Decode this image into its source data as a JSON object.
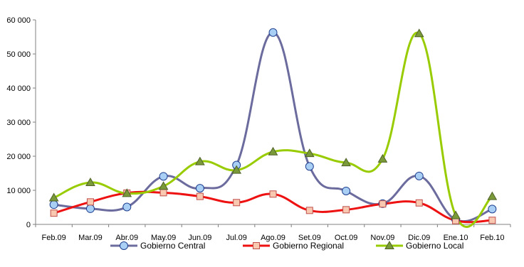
{
  "chart_data": {
    "type": "line",
    "categories": [
      "Feb.09",
      "Mar.09",
      "Abr.09",
      "May.09",
      "Jun.09",
      "Jul.09",
      "Ago.09",
      "Set.09",
      "Oct.09",
      "Nov.09",
      "Dic.09",
      "Ene.10",
      "Feb.10"
    ],
    "ylim": [
      0,
      60000
    ],
    "yticks": [
      0,
      10000,
      20000,
      30000,
      40000,
      50000,
      60000
    ],
    "ytick_labels": [
      "0",
      "10 000",
      "20 000",
      "30 000",
      "40 000",
      "50 000",
      "60 000"
    ],
    "grid": false,
    "legend_position": "bottom",
    "series": [
      {
        "name": "Gobierno Central",
        "color": "#6B6B9E",
        "marker": "circle",
        "marker_fill": "#A9CFF5",
        "marker_stroke": "#1F3F8F",
        "values": [
          5800,
          4600,
          5100,
          14100,
          10600,
          17400,
          56300,
          17000,
          9800,
          6100,
          14200,
          1400,
          4500
        ]
      },
      {
        "name": "Gobierno Regional",
        "color": "#EE1111",
        "marker": "square",
        "marker_fill": "#F8C8B0",
        "marker_stroke": "#C0504D",
        "values": [
          3300,
          6600,
          9200,
          9300,
          8200,
          6400,
          8900,
          4100,
          4300,
          6000,
          6300,
          1100,
          1200
        ]
      },
      {
        "name": "Gobierno Local",
        "color": "#99CC00",
        "marker": "triangle",
        "marker_fill": "#7A9A3A",
        "marker_stroke": "#4F6228",
        "values": [
          7800,
          12300,
          9100,
          11200,
          18400,
          15900,
          21300,
          20800,
          18100,
          19200,
          56000,
          2600,
          8200
        ]
      }
    ]
  }
}
